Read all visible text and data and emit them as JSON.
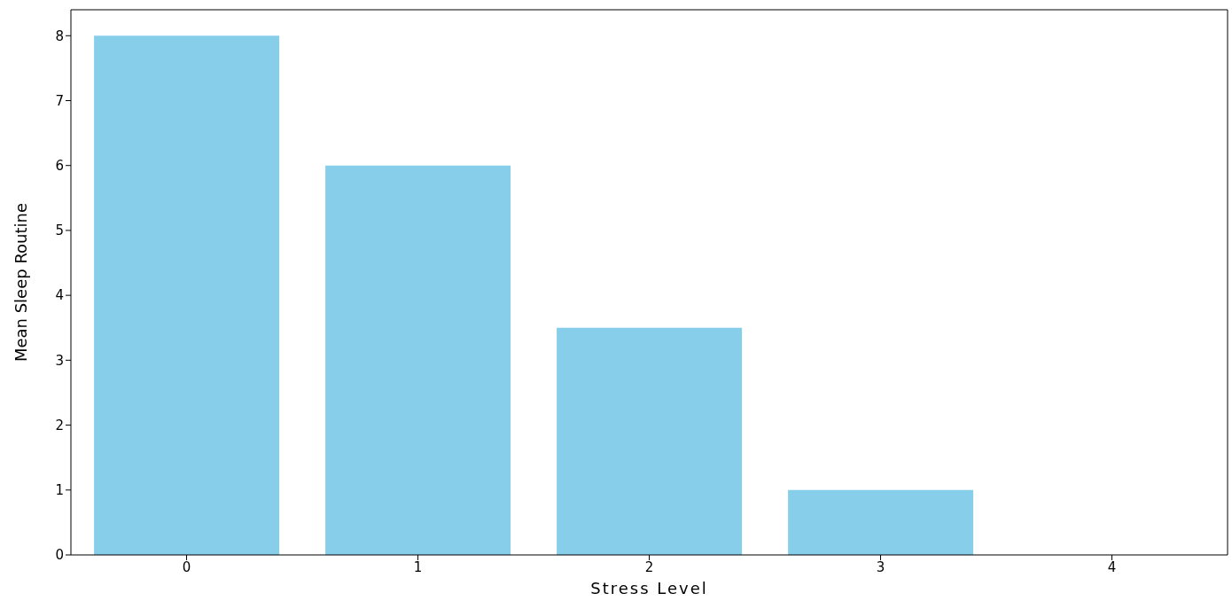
{
  "chart_data": {
    "type": "bar",
    "xlabel": "Stress Level",
    "ylabel": "Mean Sleep Routine",
    "categories": [
      "0",
      "1",
      "2",
      "3",
      "4"
    ],
    "values": [
      8,
      6,
      3.5,
      1,
      0
    ],
    "color": "#87ceeb",
    "ylim": [
      0,
      8.4
    ],
    "yticks": [
      0,
      1,
      2,
      3,
      4,
      5,
      6,
      7,
      8
    ],
    "grid": false
  }
}
